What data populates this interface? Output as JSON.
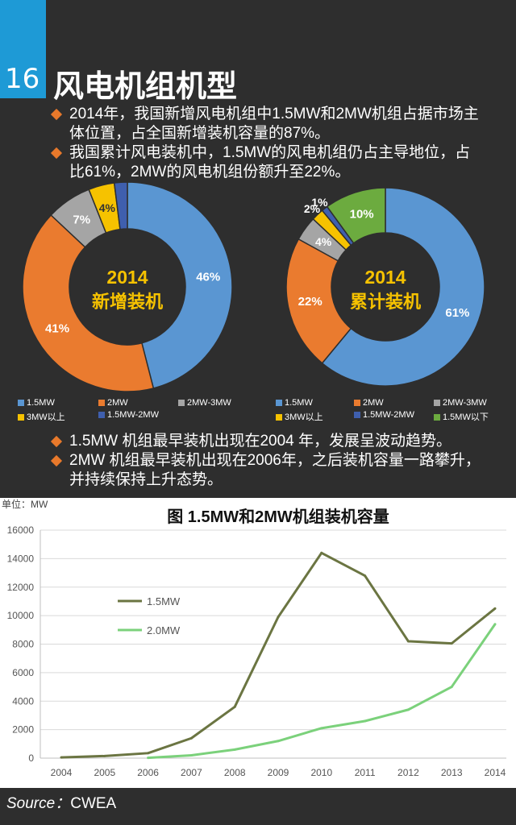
{
  "header": {
    "number": "16",
    "title": "风电机组机型"
  },
  "intro_bullets": [
    "2014年，我国新增风电机组中1.5MW和2MW机组占据市场主体位置，占全国新增装机容量的87%。",
    "我国累计风电装机中，1.5MW的风电机组仍占主导地位，占比61%，2MW的风电机组份额升至22%。"
  ],
  "lower_bullets": [
    "1.5MW 机组最早装机出现在2004 年，发展呈波动趋势。",
    "2MW 机组最早装机出现在2006年，之后装机容量一路攀升，并持续保持上升态势。"
  ],
  "source": {
    "label": "Source",
    "sep": "：",
    "value": "CWEA"
  },
  "colors": {
    "blue": "#5a96d2",
    "orange": "#ea7b2f",
    "gray": "#a5a5a5",
    "yellow": "#f6c200",
    "navy": "#3f5fae",
    "green": "#6cab3f",
    "line15": "#6b7542",
    "line20": "#7bd17b"
  },
  "chart_data": [
    {
      "type": "pie",
      "title": "2014",
      "subtitle": "新增装机",
      "slices": [
        {
          "name": "1.5MW",
          "value": 46,
          "label": "46%",
          "color": "#5a96d2"
        },
        {
          "name": "2MW",
          "value": 41,
          "label": "41%",
          "color": "#ea7b2f"
        },
        {
          "name": "2MW-3MW",
          "value": 7,
          "label": "7%",
          "color": "#a5a5a5"
        },
        {
          "name": "3MW以上",
          "value": 4,
          "label": "4%",
          "color": "#f6c200"
        },
        {
          "name": "1.5MW-2MW",
          "value": 2,
          "label": "2%",
          "color": "#3f5fae"
        }
      ],
      "legend": [
        "1.5MW",
        "2MW",
        "2MW-3MW",
        "3MW以上",
        "1.5MW-2MW"
      ]
    },
    {
      "type": "pie",
      "title": "2014",
      "subtitle": "累计装机",
      "slices": [
        {
          "name": "1.5MW",
          "value": 61,
          "label": "61%",
          "color": "#5a96d2"
        },
        {
          "name": "2MW",
          "value": 22,
          "label": "22%",
          "color": "#ea7b2f"
        },
        {
          "name": "2MW-3MW",
          "value": 4,
          "label": "4%",
          "color": "#a5a5a5"
        },
        {
          "name": "3MW以上",
          "value": 2,
          "label": "2%",
          "color": "#f6c200"
        },
        {
          "name": "1.5MW-2MW",
          "value": 1,
          "label": "1%",
          "color": "#3f5fae"
        },
        {
          "name": "1.5MW以下",
          "value": 10,
          "label": "10%",
          "color": "#6cab3f"
        }
      ],
      "legend": [
        "1.5MW",
        "2MW",
        "2MW-3MW",
        "3MW以上",
        "1.5MW-2MW",
        "1.5MW以下"
      ]
    },
    {
      "type": "line",
      "title": "图  1.5MW和2MW机组装机容量",
      "unit_label": "单位：MW",
      "x": [
        "2004",
        "2005",
        "2006",
        "2007",
        "2008",
        "2009",
        "2010",
        "2011",
        "2012",
        "2013",
        "2014"
      ],
      "ylim": [
        0,
        16000
      ],
      "yticks": [
        0,
        2000,
        4000,
        6000,
        8000,
        10000,
        12000,
        14000,
        16000
      ],
      "grid": true,
      "legend_position": "left-middle",
      "series": [
        {
          "name": "1.5MW",
          "color": "#6b7542",
          "values": [
            50,
            150,
            350,
            1400,
            3600,
            9900,
            14400,
            12800,
            8200,
            8050,
            10500
          ]
        },
        {
          "name": "2.0MW",
          "color": "#7bd17b",
          "values": [
            null,
            null,
            20,
            200,
            600,
            1200,
            2100,
            2600,
            3400,
            5000,
            9400
          ]
        }
      ]
    }
  ]
}
